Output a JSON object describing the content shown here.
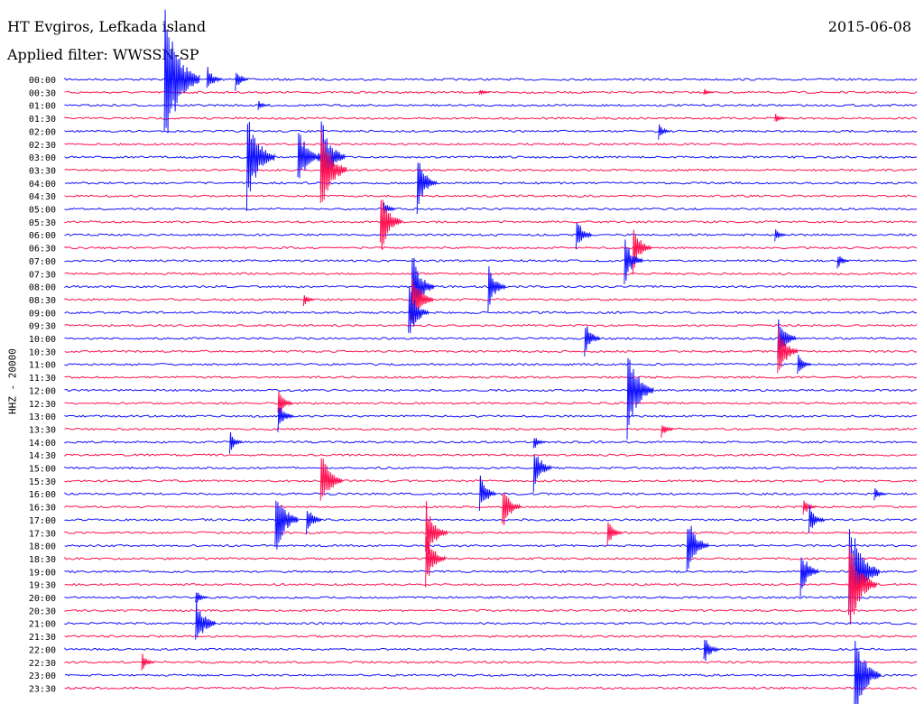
{
  "header": {
    "station": "HT Evgiros, Lefkada island",
    "date": "2015-06-08",
    "filter": "Applied filter: WWSSN-SP"
  },
  "y_axis_label": "HHZ - 20000",
  "colors": {
    "even": "#1010ff",
    "odd": "#ff1050"
  },
  "chart_data": {
    "type": "line",
    "title": "HT Evgiros, Lefkada island",
    "subtitle": "Applied filter: WWSSN-SP",
    "ylabel": "HHZ - 20000",
    "categories": [
      "00:00",
      "00:30",
      "01:00",
      "01:30",
      "02:00",
      "02:30",
      "03:00",
      "03:30",
      "04:00",
      "04:30",
      "05:00",
      "05:30",
      "06:00",
      "06:30",
      "07:00",
      "07:30",
      "08:00",
      "08:30",
      "09:00",
      "09:30",
      "10:00",
      "10:30",
      "11:00",
      "11:30",
      "12:00",
      "12:30",
      "13:00",
      "13:30",
      "14:00",
      "14:30",
      "15:00",
      "15:30",
      "16:00",
      "16:30",
      "17:00",
      "17:30",
      "18:00",
      "18:30",
      "19:00",
      "19:30",
      "20:00",
      "20:30",
      "21:00",
      "21:30",
      "22:00",
      "22:30",
      "23:00",
      "23:30"
    ],
    "events": [
      {
        "row": 0,
        "minute": 3.5,
        "amp": 85
      },
      {
        "row": 0,
        "minute": 5.0,
        "amp": 18
      },
      {
        "row": 0,
        "minute": 6.0,
        "amp": 14
      },
      {
        "row": 1,
        "minute": 14.6,
        "amp": 4
      },
      {
        "row": 1,
        "minute": 22.5,
        "amp": 5
      },
      {
        "row": 2,
        "minute": 6.8,
        "amp": 6
      },
      {
        "row": 3,
        "minute": 25.0,
        "amp": 7
      },
      {
        "row": 4,
        "minute": 20.9,
        "amp": 10
      },
      {
        "row": 6,
        "minute": 6.4,
        "amp": 60
      },
      {
        "row": 6,
        "minute": 8.2,
        "amp": 40
      },
      {
        "row": 6,
        "minute": 9.0,
        "amp": 50
      },
      {
        "row": 6,
        "minute": 8.9,
        "amp": 8
      },
      {
        "row": 7,
        "minute": 9.0,
        "amp": 55
      },
      {
        "row": 8,
        "minute": 12.4,
        "amp": 35
      },
      {
        "row": 10,
        "minute": 11.2,
        "amp": 12
      },
      {
        "row": 11,
        "minute": 11.1,
        "amp": 40
      },
      {
        "row": 12,
        "minute": 18.0,
        "amp": 22
      },
      {
        "row": 12,
        "minute": 25.0,
        "amp": 8
      },
      {
        "row": 13,
        "minute": 20.0,
        "amp": 30
      },
      {
        "row": 14,
        "minute": 19.7,
        "amp": 30
      },
      {
        "row": 14,
        "minute": 27.2,
        "amp": 10
      },
      {
        "row": 16,
        "minute": 12.2,
        "amp": 45
      },
      {
        "row": 16,
        "minute": 14.9,
        "amp": 28
      },
      {
        "row": 17,
        "minute": 12.2,
        "amp": 40
      },
      {
        "row": 17,
        "minute": 8.4,
        "amp": 8
      },
      {
        "row": 18,
        "minute": 12.1,
        "amp": 35
      },
      {
        "row": 20,
        "minute": 18.3,
        "amp": 22
      },
      {
        "row": 20,
        "minute": 25.1,
        "amp": 30
      },
      {
        "row": 21,
        "minute": 25.1,
        "amp": 35
      },
      {
        "row": 22,
        "minute": 25.8,
        "amp": 15
      },
      {
        "row": 24,
        "minute": 19.8,
        "amp": 55
      },
      {
        "row": 25,
        "minute": 7.5,
        "amp": 18
      },
      {
        "row": 26,
        "minute": 7.5,
        "amp": 20
      },
      {
        "row": 27,
        "minute": 21.0,
        "amp": 10
      },
      {
        "row": 28,
        "minute": 5.8,
        "amp": 14
      },
      {
        "row": 28,
        "minute": 16.5,
        "amp": 10
      },
      {
        "row": 30,
        "minute": 16.5,
        "amp": 30
      },
      {
        "row": 31,
        "minute": 9.0,
        "amp": 40
      },
      {
        "row": 32,
        "minute": 14.6,
        "amp": 25
      },
      {
        "row": 32,
        "minute": 28.5,
        "amp": 10
      },
      {
        "row": 33,
        "minute": 15.4,
        "amp": 30
      },
      {
        "row": 33,
        "minute": 26.0,
        "amp": 12
      },
      {
        "row": 34,
        "minute": 7.4,
        "amp": 45
      },
      {
        "row": 34,
        "minute": 8.5,
        "amp": 20
      },
      {
        "row": 34,
        "minute": 26.2,
        "amp": 20
      },
      {
        "row": 35,
        "minute": 12.7,
        "amp": 40
      },
      {
        "row": 35,
        "minute": 19.1,
        "amp": 18
      },
      {
        "row": 36,
        "minute": 21.9,
        "amp": 40
      },
      {
        "row": 37,
        "minute": 12.7,
        "amp": 35
      },
      {
        "row": 38,
        "minute": 25.9,
        "amp": 30
      },
      {
        "row": 38,
        "minute": 27.6,
        "amp": 70
      },
      {
        "row": 39,
        "minute": 27.6,
        "amp": 60
      },
      {
        "row": 40,
        "minute": 4.6,
        "amp": 10
      },
      {
        "row": 42,
        "minute": 4.6,
        "amp": 35
      },
      {
        "row": 44,
        "minute": 22.5,
        "amp": 20
      },
      {
        "row": 45,
        "minute": 2.7,
        "amp": 12
      },
      {
        "row": 46,
        "minute": 27.8,
        "amp": 55
      }
    ],
    "xlim": [
      0,
      30
    ],
    "grid": false
  }
}
